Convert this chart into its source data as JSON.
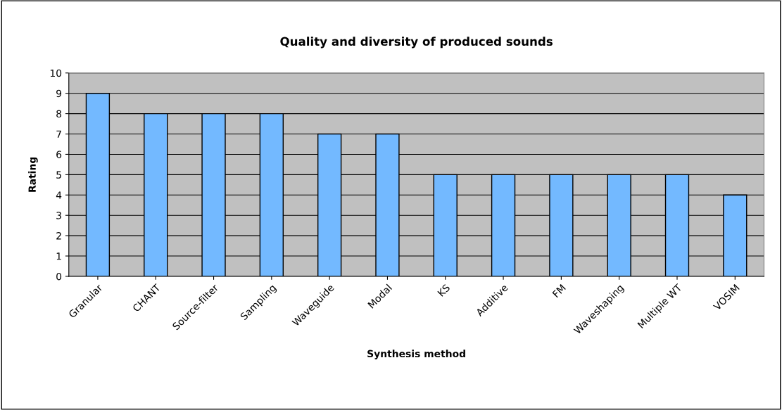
{
  "chart_data": {
    "type": "bar",
    "title": "Quality and diversity of produced sounds",
    "xlabel": "Synthesis method",
    "ylabel": "Rating",
    "categories": [
      "Granular",
      "CHANT",
      "Source-filter",
      "Sampling",
      "Waveguide",
      "Modal",
      "KS",
      "Additive",
      "FM",
      "Waveshaping",
      "Multiple WT",
      "VOSIM"
    ],
    "values": [
      9,
      8,
      8,
      8,
      7,
      7,
      5,
      5,
      5,
      5,
      5,
      4
    ],
    "color": "#73b9ff",
    "ylim": [
      0,
      10
    ],
    "yticks": [
      0,
      1,
      2,
      3,
      4,
      5,
      6,
      7,
      8,
      9,
      10
    ],
    "grid": "y"
  }
}
